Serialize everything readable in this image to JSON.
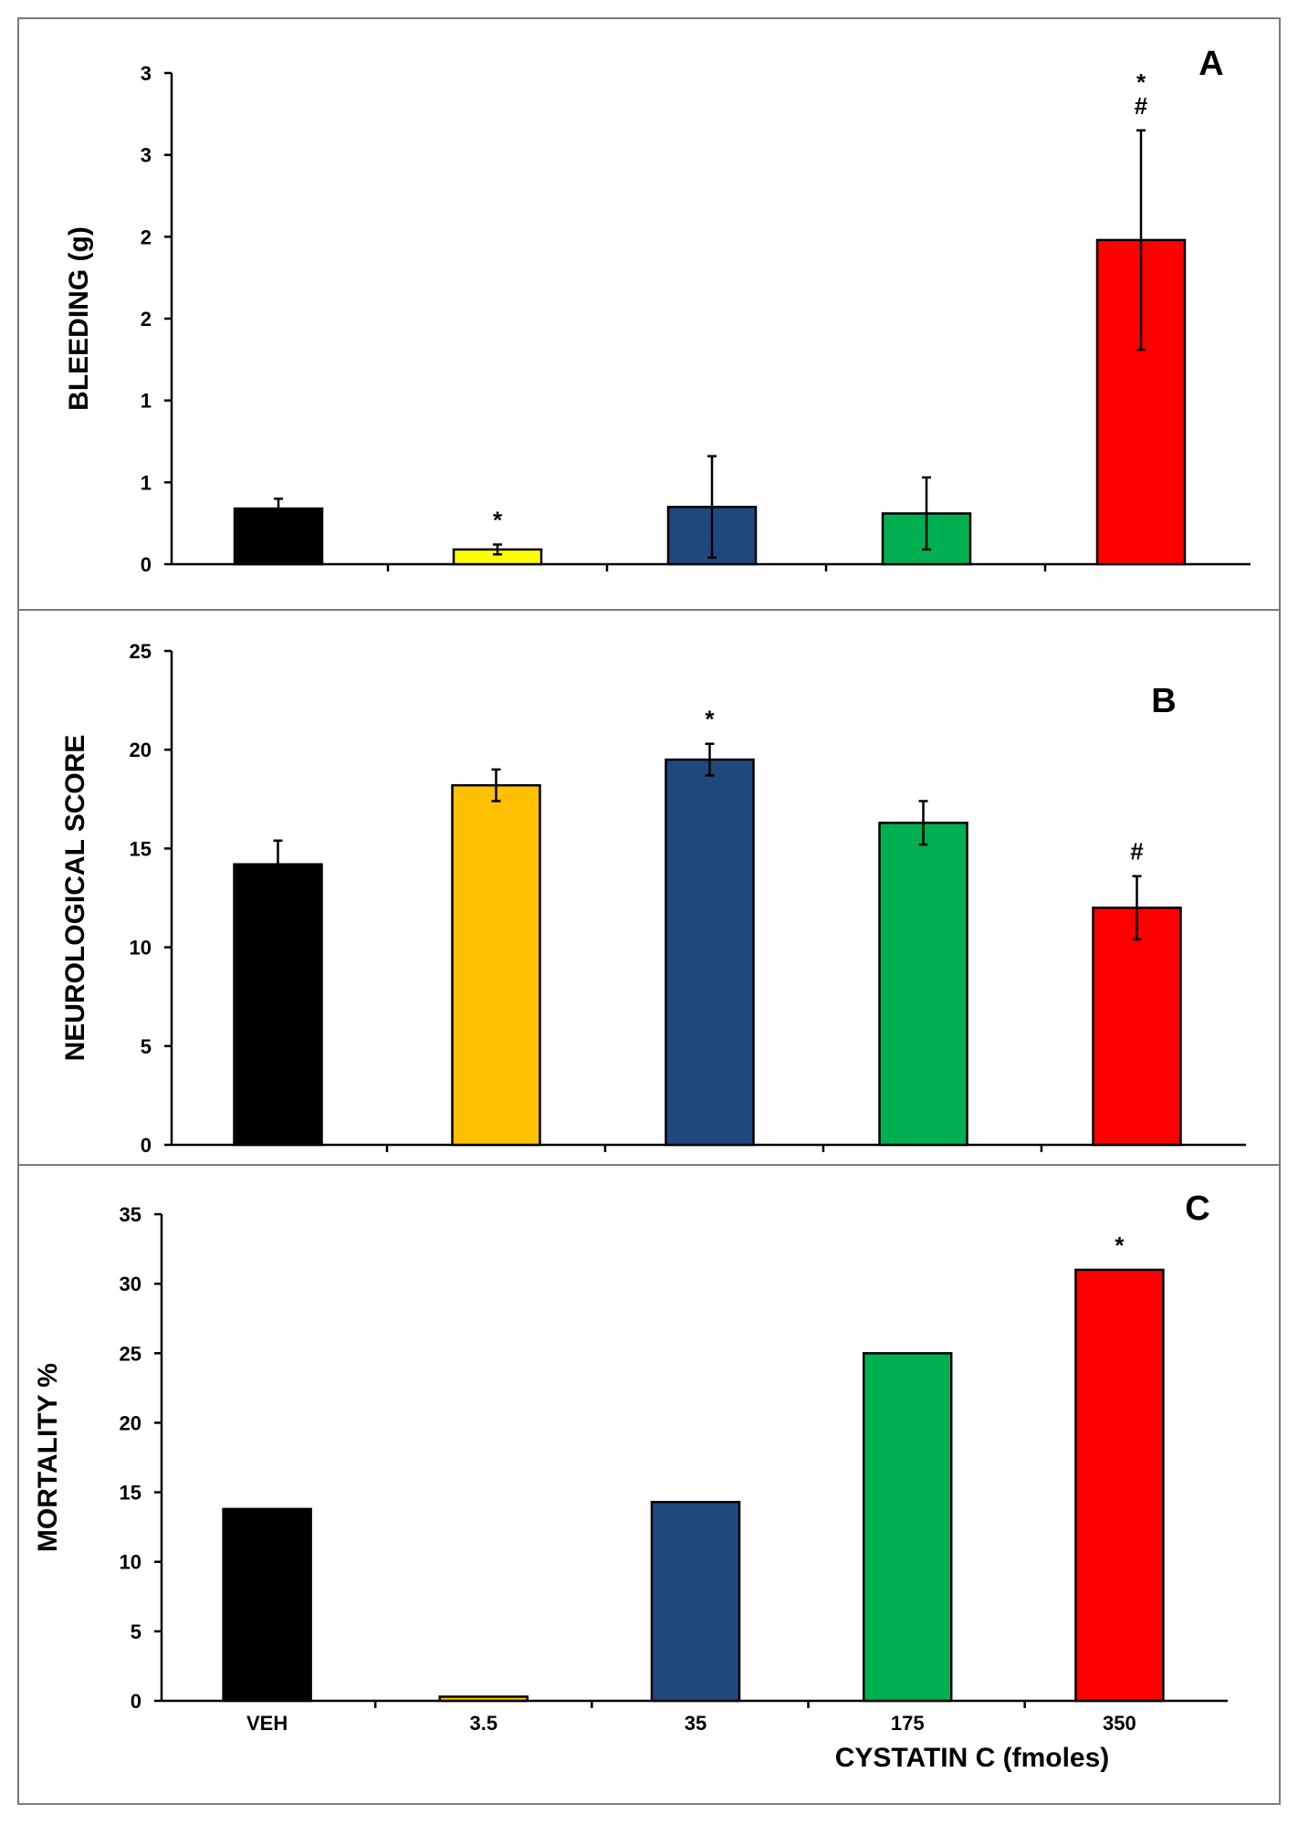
{
  "chart_data": [
    {
      "type": "bar",
      "panel": "A",
      "title": "",
      "xlabel": "",
      "ylabel": "BLEEDING (g)",
      "categories": [
        "VEH",
        "3.5",
        "35",
        "175",
        "350"
      ],
      "values": [
        0.34,
        0.09,
        0.35,
        0.31,
        1.98
      ],
      "errors": [
        0.06,
        0.03,
        0.31,
        0.22,
        0.67
      ],
      "annotations": [
        "",
        "*",
        "",
        "",
        "*\n#"
      ],
      "colors": [
        "#000000",
        "#FFFF00",
        "#1F497D",
        "#00B050",
        "#FF0000"
      ],
      "ylim": [
        0,
        3
      ],
      "ytick_values": [
        0,
        0.5,
        1,
        1.5,
        2,
        2.5,
        3
      ],
      "ytick_labels": [
        "0",
        "1",
        "1",
        "2",
        "2",
        "3",
        "3"
      ],
      "show_category_labels": false
    },
    {
      "type": "bar",
      "panel": "B",
      "title": "",
      "xlabel": "",
      "ylabel": "NEUROLOGICAL SCORE",
      "categories": [
        "VEH",
        "3.5",
        "35",
        "175",
        "350"
      ],
      "values": [
        14.2,
        18.2,
        19.5,
        16.3,
        12.0
      ],
      "errors": [
        1.2,
        0.8,
        0.8,
        1.1,
        1.6
      ],
      "annotations": [
        "",
        "",
        "*",
        "",
        "#"
      ],
      "colors": [
        "#000000",
        "#FFC000",
        "#1F497D",
        "#00B050",
        "#FF0000"
      ],
      "ylim": [
        0,
        25
      ],
      "ytick_values": [
        0,
        5,
        10,
        15,
        20,
        25
      ],
      "ytick_labels": [
        "0",
        "5",
        "10",
        "15",
        "20",
        "25"
      ],
      "show_category_labels": false
    },
    {
      "type": "bar",
      "panel": "C",
      "title": "",
      "xlabel": "CYSTATIN C  (fmoles)",
      "ylabel": "MORTALITY %",
      "categories": [
        "VEH",
        "3.5",
        "35",
        "175",
        "350"
      ],
      "values": [
        13.8,
        0.3,
        14.3,
        25.0,
        31.0
      ],
      "errors": [
        0,
        0,
        0,
        0,
        0
      ],
      "annotations": [
        "",
        "",
        "",
        "",
        "*"
      ],
      "colors": [
        "#000000",
        "#FFC000",
        "#1F497D",
        "#00B050",
        "#FF0000"
      ],
      "ylim": [
        0,
        35
      ],
      "ytick_values": [
        0,
        5,
        10,
        15,
        20,
        25,
        30,
        35
      ],
      "ytick_labels": [
        "0",
        "5",
        "10",
        "15",
        "20",
        "25",
        "30",
        "35"
      ],
      "show_category_labels": true
    }
  ]
}
